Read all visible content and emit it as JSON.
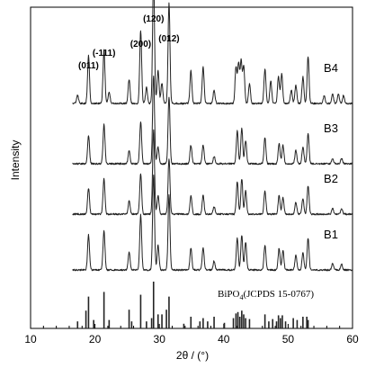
{
  "chart_data": {
    "type": "line",
    "xlabel": "2θ / (°)",
    "ylabel": "Intensity",
    "xlim": [
      10,
      60
    ],
    "xticks": [
      10,
      20,
      30,
      40,
      50,
      60
    ],
    "xtick_labels": [
      "10",
      "20",
      "30",
      "40",
      "50",
      "60"
    ],
    "y_ticks_shown": false,
    "grid": false,
    "peak_labels": [
      {
        "text": "(011)",
        "x": 19.0
      },
      {
        "text": "(-111)",
        "x": 21.4
      },
      {
        "text": "(200)",
        "x": 27.1
      },
      {
        "text": "(120)",
        "x": 29.1
      },
      {
        "text": "(012)",
        "x": 31.5
      }
    ],
    "series": [
      {
        "name": "B4",
        "baseline": 4,
        "amplitude": 1.0,
        "peaks": [
          [
            17.3,
            0.06
          ],
          [
            19.0,
            0.36
          ],
          [
            21.4,
            0.4
          ],
          [
            22.2,
            0.09
          ],
          [
            25.3,
            0.18
          ],
          [
            27.1,
            0.55
          ],
          [
            28.0,
            0.12
          ],
          [
            29.1,
            0.95
          ],
          [
            29.8,
            0.25
          ],
          [
            30.4,
            0.15
          ],
          [
            31.5,
            0.75
          ],
          [
            34.9,
            0.25
          ],
          [
            36.8,
            0.28
          ],
          [
            38.5,
            0.1
          ],
          [
            41.9,
            0.27
          ],
          [
            42.3,
            0.3
          ],
          [
            42.7,
            0.32
          ],
          [
            43.1,
            0.28
          ],
          [
            44.0,
            0.15
          ],
          [
            46.4,
            0.26
          ],
          [
            47.3,
            0.17
          ],
          [
            48.5,
            0.2
          ],
          [
            49.0,
            0.22
          ],
          [
            50.5,
            0.1
          ],
          [
            51.2,
            0.14
          ],
          [
            52.3,
            0.2
          ],
          [
            53.1,
            0.35
          ],
          [
            55.6,
            0.06
          ],
          [
            56.9,
            0.07
          ],
          [
            57.8,
            0.07
          ],
          [
            58.6,
            0.06
          ]
        ]
      },
      {
        "name": "B3",
        "baseline": 3,
        "amplitude": 0.7,
        "peaks": [
          [
            19.0,
            0.3
          ],
          [
            21.4,
            0.42
          ],
          [
            25.3,
            0.14
          ],
          [
            27.1,
            0.45
          ],
          [
            29.1,
            0.95
          ],
          [
            29.8,
            0.18
          ],
          [
            31.5,
            0.72
          ],
          [
            34.9,
            0.2
          ],
          [
            36.8,
            0.2
          ],
          [
            38.5,
            0.08
          ],
          [
            42.1,
            0.35
          ],
          [
            42.8,
            0.38
          ],
          [
            43.4,
            0.25
          ],
          [
            46.4,
            0.28
          ],
          [
            48.6,
            0.22
          ],
          [
            49.2,
            0.2
          ],
          [
            51.2,
            0.14
          ],
          [
            52.3,
            0.18
          ],
          [
            53.1,
            0.32
          ],
          [
            56.9,
            0.06
          ],
          [
            58.3,
            0.06
          ]
        ]
      },
      {
        "name": "B2",
        "baseline": 2,
        "amplitude": 0.7,
        "peaks": [
          [
            19.0,
            0.28
          ],
          [
            21.4,
            0.38
          ],
          [
            25.3,
            0.14
          ],
          [
            27.1,
            0.44
          ],
          [
            29.1,
            0.9
          ],
          [
            29.8,
            0.2
          ],
          [
            31.5,
            0.6
          ],
          [
            34.9,
            0.2
          ],
          [
            36.8,
            0.2
          ],
          [
            38.5,
            0.08
          ],
          [
            42.1,
            0.35
          ],
          [
            42.8,
            0.38
          ],
          [
            43.4,
            0.25
          ],
          [
            46.4,
            0.25
          ],
          [
            48.6,
            0.2
          ],
          [
            49.2,
            0.18
          ],
          [
            51.2,
            0.13
          ],
          [
            52.3,
            0.17
          ],
          [
            53.1,
            0.3
          ],
          [
            56.9,
            0.06
          ],
          [
            58.3,
            0.06
          ]
        ]
      },
      {
        "name": "B1",
        "baseline": 1,
        "amplitude": 0.75,
        "peaks": [
          [
            19.0,
            0.35
          ],
          [
            21.4,
            0.4
          ],
          [
            25.3,
            0.18
          ],
          [
            27.1,
            0.55
          ],
          [
            29.1,
            0.95
          ],
          [
            29.8,
            0.25
          ],
          [
            31.5,
            0.75
          ],
          [
            34.9,
            0.22
          ],
          [
            36.8,
            0.22
          ],
          [
            38.5,
            0.09
          ],
          [
            42.1,
            0.32
          ],
          [
            42.8,
            0.35
          ],
          [
            43.4,
            0.28
          ],
          [
            46.4,
            0.25
          ],
          [
            48.6,
            0.22
          ],
          [
            49.2,
            0.2
          ],
          [
            51.2,
            0.15
          ],
          [
            52.3,
            0.18
          ],
          [
            53.1,
            0.32
          ],
          [
            56.9,
            0.06
          ],
          [
            58.3,
            0.06
          ]
        ]
      }
    ],
    "reference": {
      "label_main": "BiPO",
      "label_sub": "4",
      "label_rest": "(JCPDS 15-0767)",
      "lines": [
        [
          17.3,
          0.15
        ],
        [
          18.6,
          0.38
        ],
        [
          19.0,
          0.68
        ],
        [
          19.8,
          0.18
        ],
        [
          21.4,
          0.78
        ],
        [
          22.2,
          0.18
        ],
        [
          25.3,
          0.4
        ],
        [
          25.7,
          0.15
        ],
        [
          27.1,
          0.72
        ],
        [
          28.0,
          0.15
        ],
        [
          28.8,
          0.22
        ],
        [
          29.1,
          1.0
        ],
        [
          29.8,
          0.3
        ],
        [
          30.4,
          0.3
        ],
        [
          31.1,
          0.4
        ],
        [
          31.5,
          0.68
        ],
        [
          33.8,
          0.1
        ],
        [
          34.9,
          0.25
        ],
        [
          36.3,
          0.15
        ],
        [
          36.8,
          0.22
        ],
        [
          37.5,
          0.15
        ],
        [
          38.5,
          0.25
        ],
        [
          40.1,
          0.12
        ],
        [
          41.5,
          0.22
        ],
        [
          41.9,
          0.32
        ],
        [
          42.2,
          0.35
        ],
        [
          42.5,
          0.25
        ],
        [
          42.8,
          0.38
        ],
        [
          43.1,
          0.3
        ],
        [
          43.4,
          0.22
        ],
        [
          44.0,
          0.2
        ],
        [
          46.4,
          0.3
        ],
        [
          47.0,
          0.15
        ],
        [
          47.6,
          0.2
        ],
        [
          48.2,
          0.15
        ],
        [
          48.5,
          0.28
        ],
        [
          48.8,
          0.22
        ],
        [
          49.1,
          0.28
        ],
        [
          49.6,
          0.15
        ],
        [
          50.8,
          0.22
        ],
        [
          51.4,
          0.18
        ],
        [
          52.3,
          0.25
        ],
        [
          52.9,
          0.25
        ],
        [
          53.1,
          0.18
        ]
      ]
    }
  }
}
